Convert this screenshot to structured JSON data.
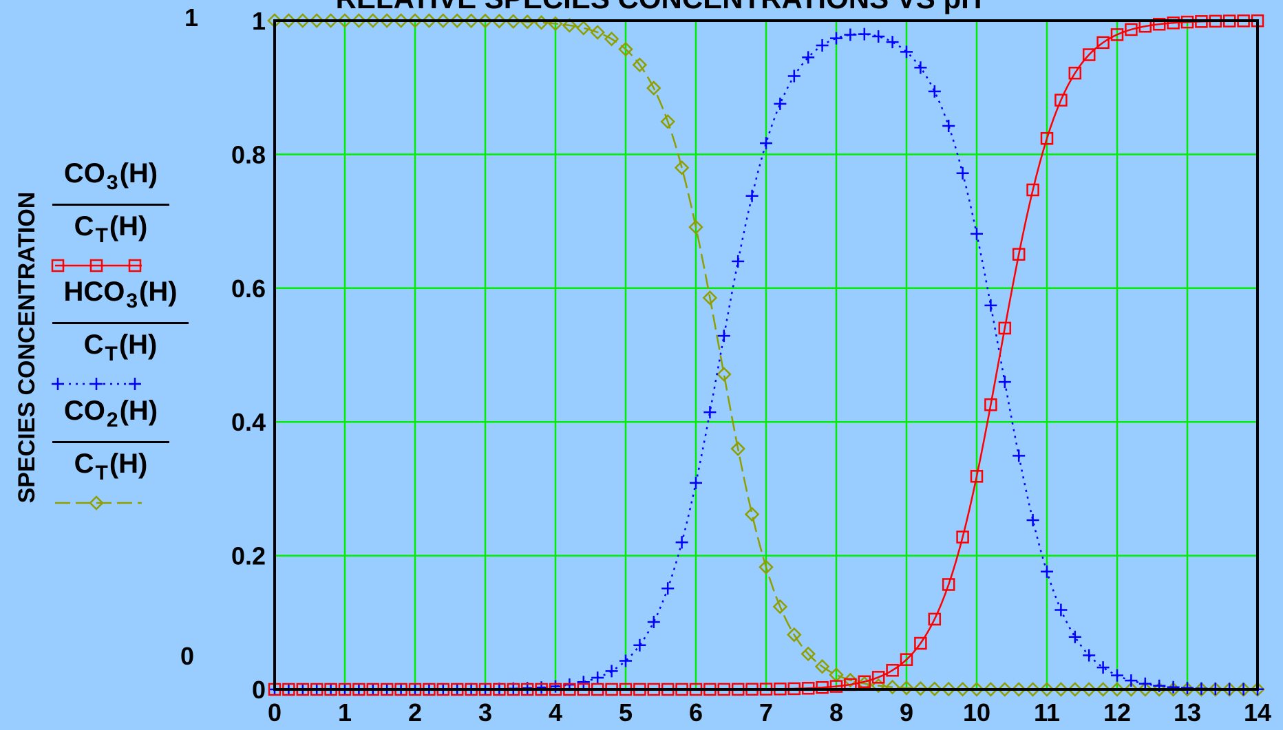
{
  "chart_data": {
    "type": "line",
    "title": "RELATIVE SPECIES CONCENTRATIONS VS pH",
    "xlabel": "",
    "ylabel": "SPECIES CONCENTRATION",
    "xlim": [
      0,
      14
    ],
    "ylim": [
      0,
      1
    ],
    "xticks": [
      "0",
      "1",
      "2",
      "3",
      "4",
      "5",
      "6",
      "7",
      "8",
      "9",
      "10",
      "11",
      "12",
      "13",
      "14"
    ],
    "yticks": [
      "0",
      "0.2",
      "0.4",
      "0.6",
      "0.8",
      "1"
    ],
    "outer_y_labels": {
      "top": "1",
      "bottom": "0"
    },
    "grid": true,
    "legend_position": "left",
    "colors": {
      "background": "#99ccff",
      "grid": "#00ee00",
      "co3": "#ff0000",
      "hco3": "#0000ff",
      "co2": "#8f9f00"
    },
    "pKa1": 6.35,
    "pKa2": 10.33,
    "series": [
      {
        "key": "co3",
        "num_main": "CO",
        "num_sub": "3",
        "num_tail": "(H)",
        "den_main": "C",
        "den_sub": "T",
        "den_tail": "(H)",
        "marker": "square",
        "line_style": "solid",
        "color": "#ff0000"
      },
      {
        "key": "hco3",
        "num_main": "HCO",
        "num_sub": "3",
        "num_tail": "(H)",
        "den_main": "C",
        "den_sub": "T",
        "den_tail": "(H)",
        "marker": "plus",
        "line_style": "dotted",
        "color": "#0000ff"
      },
      {
        "key": "co2",
        "num_main": "CO",
        "num_sub": "2",
        "num_tail": "(H)",
        "den_main": "C",
        "den_sub": "T",
        "den_tail": "(H)",
        "marker": "diamond",
        "line_style": "dashed",
        "color": "#8f9f00"
      }
    ]
  }
}
